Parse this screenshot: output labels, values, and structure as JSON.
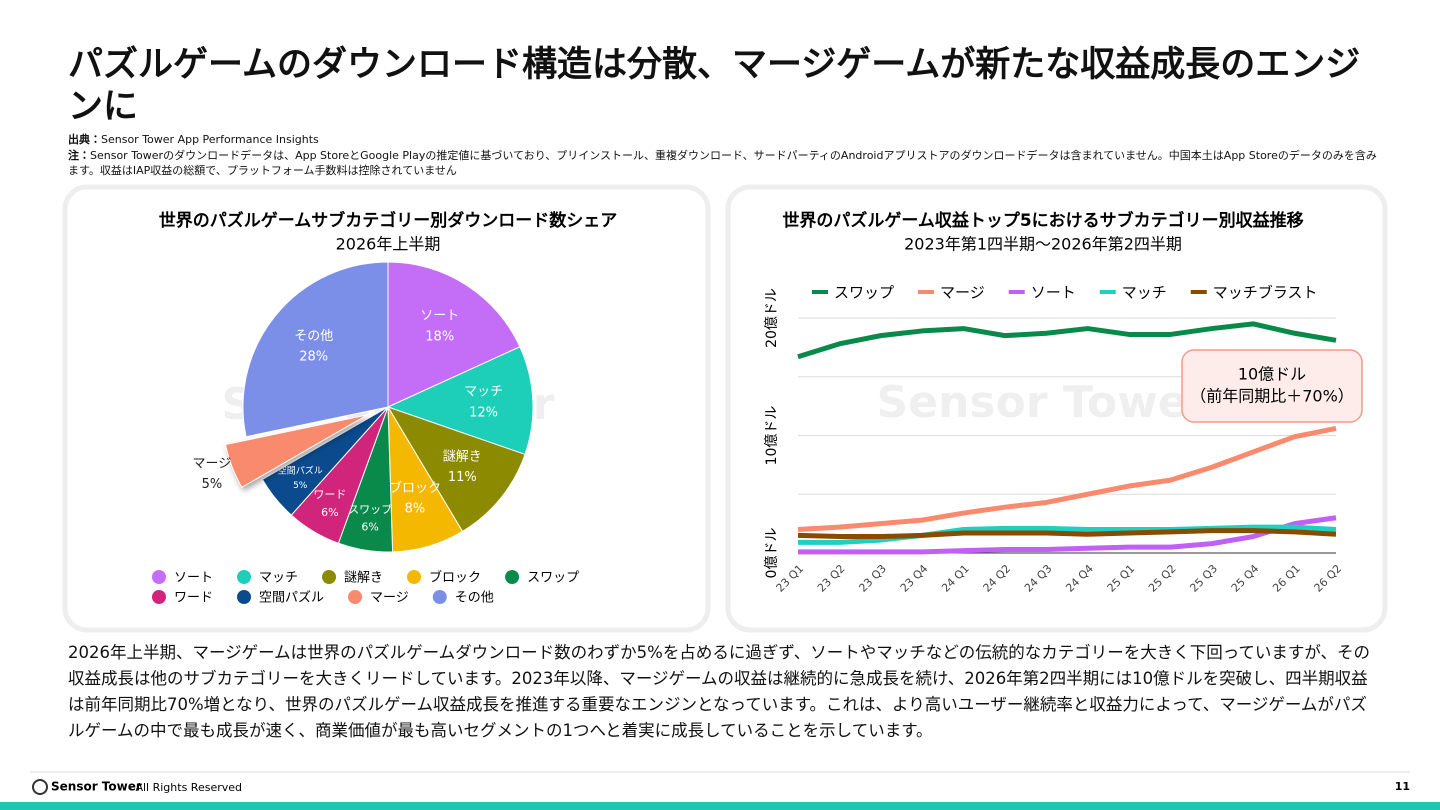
{
  "header": {
    "title": "パズルゲームのダウンロード構造は分散、マージゲームが新たな収益成長のエンジンに",
    "source": {
      "label": "出典：",
      "text": "Sensor Tower App Performance Insights"
    },
    "note": {
      "label": "注：",
      "text": "Sensor Towerのダウンロードデータは、App StoreとGoogle Playの推定値に基づいており、プリインストール、重複ダウンロード、サードパーティのAndroidアプリストアのダウンロードデータは含まれていません。中国本土はApp Storeのデータのみを含みます。収益はIAP収益の総額で、プラットフォーム手数料は控除されていません"
    }
  },
  "chart_data": [
    {
      "type": "pie",
      "title": "世界のパズルゲームサブカテゴリー別ダウンロード数シェア",
      "subtitle": "2026年上半期",
      "watermark": "Sensor Tower",
      "categories": [
        "ソート",
        "マッチ",
        "謎解き",
        "ブロック",
        "スワップ",
        "ワード",
        "空間パズル",
        "マージ",
        "その他"
      ],
      "values": [
        18,
        12,
        11,
        8,
        6,
        6,
        5,
        5,
        28
      ],
      "value_labels": [
        "18%",
        "12%",
        "11%",
        "8%",
        "6%",
        "6%",
        "5%",
        "5%",
        "28%"
      ],
      "colors": [
        "#c46ef7",
        "#1dcfb8",
        "#8c8a00",
        "#f5b800",
        "#0a8a4a",
        "#d0257a",
        "#0b4a8c",
        "#fa8a6e",
        "#7b8fe8"
      ],
      "exploded": "マージ",
      "legend": "bottom"
    },
    {
      "type": "line",
      "title": "世界のパズルゲーム収益トップ5におけるサブカテゴリー別収益推移",
      "subtitle": "2023年第1四半期～2026年第2四半期",
      "watermark": "Sensor Tower",
      "categories": [
        "23 Q1",
        "23 Q2",
        "23 Q3",
        "23 Q4",
        "24 Q1",
        "24 Q2",
        "24 Q3",
        "24 Q4",
        "25 Q1",
        "25 Q2",
        "25 Q3",
        "25 Q4",
        "26 Q1",
        "26 Q2"
      ],
      "series": [
        {
          "name": "スワップ",
          "color": "#0a8a4a",
          "values": [
            16.7,
            17.8,
            18.5,
            18.9,
            19.1,
            18.5,
            18.7,
            19.1,
            18.6,
            18.6,
            19.1,
            19.5,
            18.7,
            18.1
          ]
        },
        {
          "name": "マージ",
          "color": "#fa8a6e",
          "values": [
            2.0,
            2.2,
            2.5,
            2.8,
            3.4,
            3.9,
            4.3,
            5.0,
            5.7,
            6.2,
            7.3,
            8.6,
            9.9,
            10.6
          ]
        },
        {
          "name": "ソート",
          "color": "#c060f5",
          "values": [
            0.1,
            0.1,
            0.1,
            0.1,
            0.2,
            0.3,
            0.3,
            0.4,
            0.5,
            0.5,
            0.8,
            1.4,
            2.5,
            3.0
          ]
        },
        {
          "name": "マッチ",
          "color": "#1fd0c0",
          "values": [
            0.9,
            0.9,
            1.1,
            1.5,
            2.0,
            2.1,
            2.1,
            2.0,
            2.0,
            2.0,
            2.1,
            2.2,
            2.2,
            2.0
          ]
        },
        {
          "name": "マッチブラスト",
          "color": "#8a4a00",
          "values": [
            1.5,
            1.4,
            1.4,
            1.5,
            1.7,
            1.7,
            1.7,
            1.6,
            1.7,
            1.8,
            1.9,
            1.9,
            1.8,
            1.6
          ]
        }
      ],
      "ylim": [
        0,
        20
      ],
      "yticks": [
        {
          "value": 0,
          "label": "0億ドル"
        },
        {
          "value": 10,
          "label": "10億ドル"
        },
        {
          "value": 20,
          "label": "20億ドル"
        }
      ],
      "minor_yticks": [
        5,
        15
      ],
      "grid": true,
      "legend": "top",
      "annotation": [
        "10億ドル",
        "（前年同期比＋70%）"
      ]
    }
  ],
  "body": "2026年上半期、マージゲームは世界のパズルゲームダウンロード数のわずか5%を占めるに過ぎず、ソートやマッチなどの伝統的なカテゴリーを大きく下回っていますが、その収益成長は他のサブカテゴリーを大きくリードしています。2023年以降、マージゲームの収益は継続的に急成長を続け、2026年第2四半期には10億ドルを突破し、四半期収益は前年同期比70%増となり、世界のパズルゲーム収益成長を推進する重要なエンジンとなっています。これは、より高いユーザー継続率と収益力によって、マージゲームがパズルゲームの中で最も成長が速く、商業価値が最も高いセグメントの1つへと着実に成長していることを示しています。",
  "footer": {
    "brand": "Sensor Tower",
    "rights": "- All Rights Reserved",
    "page": "11"
  }
}
